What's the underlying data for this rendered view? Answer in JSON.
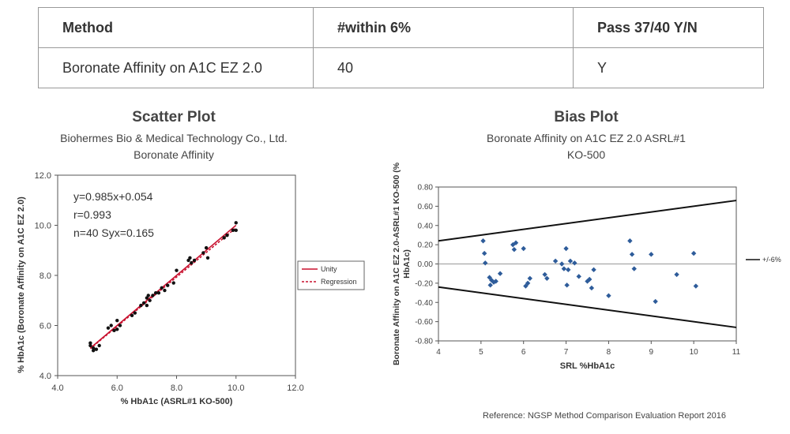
{
  "table": {
    "headers": [
      "Method",
      "#within 6%",
      "Pass 37/40 Y/N"
    ],
    "rows": [
      [
        "Boronate Affinity on A1C EZ 2.0",
        "40",
        "Y"
      ]
    ]
  },
  "chart_data": [
    {
      "type": "scatter",
      "title": "Scatter Plot",
      "subtitle": [
        "Biohermes Bio & Medical Technology Co., Ltd.",
        "Boronate Affinity"
      ],
      "xlabel": "% HbA1c (ASRL#1 KO-500)",
      "ylabel": "% HbA1c (Boronate Affinity on A1C EZ 2.0)",
      "xlim": [
        4.0,
        12.0
      ],
      "ylim": [
        4.0,
        12.0
      ],
      "xticks": [
        "4.0",
        "6.0",
        "8.0",
        "10.0",
        "12.0"
      ],
      "yticks": [
        "4.0",
        "6.0",
        "8.0",
        "10.0",
        "12.0"
      ],
      "annotations": [
        "y=0.985x+0.054",
        "r=0.993",
        "n=40 Syx=0.165"
      ],
      "legend": {
        "position": "right",
        "entries": [
          "Unity",
          "Regression"
        ]
      },
      "lines": [
        {
          "name": "Unity",
          "color": "#c8102e",
          "style": "solid",
          "x": [
            5.1,
            10.0
          ],
          "y": [
            5.1,
            10.0
          ]
        },
        {
          "name": "Regression",
          "color": "#c8102e",
          "style": "dashed",
          "x": [
            5.1,
            10.0
          ],
          "y": [
            5.08,
            9.9
          ]
        }
      ],
      "points_color": "#111111",
      "points": [
        [
          5.1,
          5.2
        ],
        [
          5.1,
          5.3
        ],
        [
          5.2,
          5.1
        ],
        [
          5.2,
          5.0
        ],
        [
          5.3,
          5.05
        ],
        [
          5.4,
          5.2
        ],
        [
          5.7,
          5.9
        ],
        [
          5.8,
          6.0
        ],
        [
          5.9,
          5.8
        ],
        [
          6.0,
          5.85
        ],
        [
          6.0,
          6.2
        ],
        [
          6.1,
          6.0
        ],
        [
          6.5,
          6.4
        ],
        [
          6.6,
          6.5
        ],
        [
          6.8,
          6.8
        ],
        [
          6.9,
          6.9
        ],
        [
          7.0,
          6.8
        ],
        [
          7.0,
          7.1
        ],
        [
          7.05,
          7.2
        ],
        [
          7.1,
          7.0
        ],
        [
          7.2,
          7.2
        ],
        [
          7.3,
          7.3
        ],
        [
          7.4,
          7.3
        ],
        [
          7.5,
          7.5
        ],
        [
          7.6,
          7.4
        ],
        [
          7.7,
          7.6
        ],
        [
          7.9,
          7.7
        ],
        [
          8.0,
          8.2
        ],
        [
          8.4,
          8.6
        ],
        [
          8.45,
          8.7
        ],
        [
          8.5,
          8.5
        ],
        [
          8.6,
          8.6
        ],
        [
          8.9,
          8.9
        ],
        [
          9.0,
          9.1
        ],
        [
          9.05,
          8.7
        ],
        [
          9.6,
          9.5
        ],
        [
          9.7,
          9.6
        ],
        [
          9.9,
          9.8
        ],
        [
          10.0,
          10.1
        ],
        [
          10.0,
          9.8
        ]
      ]
    },
    {
      "type": "scatter",
      "title": "Bias Plot",
      "subtitle": [
        "Boronate Affinity on A1C EZ 2.0 ASRL#1",
        "KO-500"
      ],
      "xlabel": "SRL %HbA1c",
      "ylabel": "Boronate Affinity on A1C EZ 2.0-ASRL#1 KO-500 (% HbA1c)",
      "xlim": [
        4,
        11
      ],
      "ylim": [
        -0.8,
        0.8
      ],
      "xticks": [
        "4",
        "5",
        "6",
        "7",
        "8",
        "9",
        "10",
        "11"
      ],
      "yticks": [
        "-0.80",
        "-0.60",
        "-0.40",
        "-0.20",
        "0.00",
        "0.20",
        "0.40",
        "0.60",
        "0.80"
      ],
      "legend": {
        "position": "right",
        "entries": [
          "+/-6%"
        ]
      },
      "limit_lines": [
        {
          "name": "+6%",
          "color": "#111111",
          "x": [
            4,
            11
          ],
          "y": [
            0.24,
            0.66
          ]
        },
        {
          "name": "-6%",
          "color": "#111111",
          "x": [
            4,
            11
          ],
          "y": [
            -0.24,
            -0.66
          ]
        }
      ],
      "zero_line": {
        "y": 0,
        "color": "#999999"
      },
      "points_color": "#2e5c9a",
      "points": [
        [
          5.05,
          0.24
        ],
        [
          5.08,
          0.11
        ],
        [
          5.1,
          0.01
        ],
        [
          5.2,
          -0.14
        ],
        [
          5.22,
          -0.22
        ],
        [
          5.25,
          -0.17
        ],
        [
          5.3,
          -0.19
        ],
        [
          5.35,
          -0.18
        ],
        [
          5.45,
          -0.1
        ],
        [
          5.75,
          0.2
        ],
        [
          5.78,
          0.15
        ],
        [
          5.82,
          0.22
        ],
        [
          6.0,
          0.16
        ],
        [
          6.05,
          -0.23
        ],
        [
          6.1,
          -0.2
        ],
        [
          6.15,
          -0.15
        ],
        [
          6.5,
          -0.11
        ],
        [
          6.55,
          -0.15
        ],
        [
          6.75,
          0.03
        ],
        [
          6.9,
          0.0
        ],
        [
          6.95,
          -0.05
        ],
        [
          7.0,
          0.16
        ],
        [
          7.02,
          -0.22
        ],
        [
          7.05,
          -0.06
        ],
        [
          7.1,
          0.03
        ],
        [
          7.2,
          0.01
        ],
        [
          7.3,
          -0.13
        ],
        [
          7.5,
          -0.18
        ],
        [
          7.55,
          -0.16
        ],
        [
          7.6,
          -0.25
        ],
        [
          7.65,
          -0.06
        ],
        [
          8.0,
          -0.33
        ],
        [
          8.5,
          0.24
        ],
        [
          8.55,
          0.1
        ],
        [
          8.6,
          -0.05
        ],
        [
          9.0,
          0.1
        ],
        [
          9.1,
          -0.39
        ],
        [
          9.6,
          -0.11
        ],
        [
          10.0,
          0.11
        ],
        [
          10.05,
          -0.23
        ]
      ]
    }
  ],
  "reference": "Reference: NGSP Method Comparison Evaluation Report 2016"
}
